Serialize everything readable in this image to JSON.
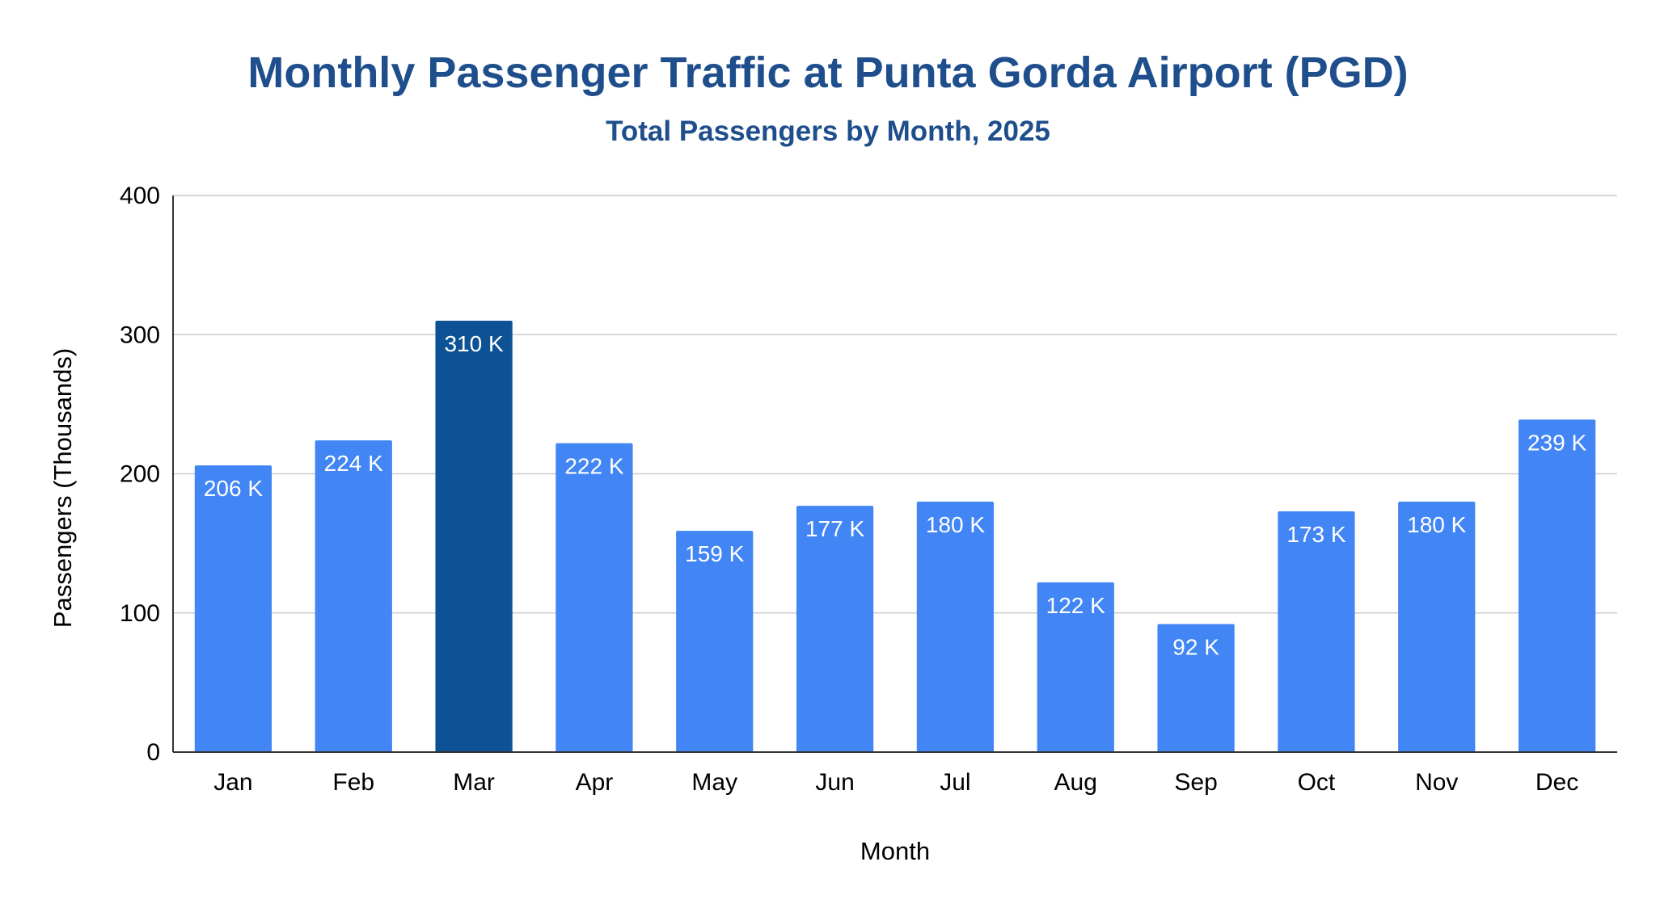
{
  "chart_data": {
    "type": "bar",
    "title": "Monthly Passenger Traffic at Punta Gorda Airport (PGD)",
    "subtitle": "Total Passengers by Month, 2025",
    "xlabel": "Month",
    "ylabel": "Passengers (Thousands)",
    "ylim": [
      0,
      400
    ],
    "yticks": [
      0,
      100,
      200,
      300,
      400
    ],
    "grid": true,
    "legend": "none",
    "categories": [
      "Jan",
      "Feb",
      "Mar",
      "Apr",
      "May",
      "Jun",
      "Jul",
      "Aug",
      "Sep",
      "Oct",
      "Nov",
      "Dec"
    ],
    "values": [
      206,
      224,
      310,
      222,
      159,
      177,
      180,
      122,
      92,
      173,
      180,
      239
    ],
    "data_labels": [
      "206 K",
      "224 K",
      "310 K",
      "222 K",
      "159 K",
      "177 K",
      "180 K",
      "122 K",
      "92 K",
      "173 K",
      "180 K",
      "239 K"
    ],
    "highlight_index": 2,
    "colors": {
      "bar": "#4285f4",
      "highlight": "#0d5294",
      "title": "#1f4e8c",
      "gridline": "#cccccc",
      "axis": "#333333",
      "data_label": "#ffffff"
    }
  }
}
